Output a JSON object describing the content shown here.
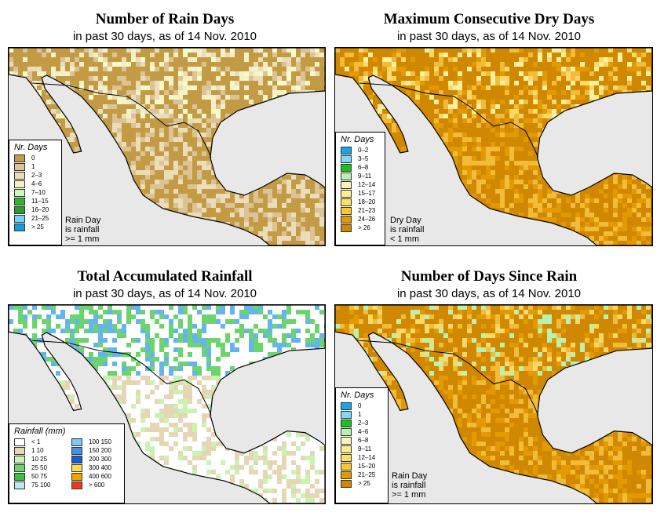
{
  "subtitle_text": "in past 30 days, as of  14 Nov. 2010",
  "colors": {
    "sea": "#e8e8e8",
    "border": "#000000"
  },
  "panels": [
    {
      "id": "rain-days",
      "title": "Number of Rain Days",
      "subtitle": "in past 30 days, as of  14 Nov. 2010",
      "map_icon": "rain-days-map",
      "palette": [
        "#c49b45",
        "#dcc395",
        "#ebdcba",
        "#f6f0c8",
        "#f7fbc9",
        "#2db52d"
      ],
      "legend": {
        "title": "Nr. Days",
        "items": [
          {
            "label": "0",
            "color": "#c49b45"
          },
          {
            "label": "1",
            "color": "#dcc395"
          },
          {
            "label": "2–3",
            "color": "#ebdcba"
          },
          {
            "label": "4–6",
            "color": "#f6f0c8"
          },
          {
            "label": "7–10",
            "color": "#cbf7c0"
          },
          {
            "label": "11–15",
            "color": "#2db52d"
          },
          {
            "label": "16–20",
            "color": "#2d9b2d"
          },
          {
            "label": "21–25",
            "color": "#6fd4f3"
          },
          {
            "label": "> 25",
            "color": "#159bdc"
          }
        ]
      },
      "note": "Rain Day\nis rainfall\n>= 1 mm"
    },
    {
      "id": "dry-days",
      "title": "Maximum Consecutive Dry Days",
      "subtitle": "in past 30 days, as of  14 Nov. 2010",
      "map_icon": "dry-days-map",
      "palette": [
        "#cf8800",
        "#e39a00",
        "#f2bc3a",
        "#fad86a",
        "#fbf0a0",
        "#b9f2b0",
        "#18c41c"
      ],
      "legend": {
        "title": "Nr. Days",
        "items": [
          {
            "label": "0–2",
            "color": "#1aa5e6"
          },
          {
            "label": "3–5",
            "color": "#7fd8f6"
          },
          {
            "label": "6–8",
            "color": "#18c41c"
          },
          {
            "label": "9–11",
            "color": "#b9f2b0"
          },
          {
            "label": "12–14",
            "color": "#fbf6b6"
          },
          {
            "label": "15–17",
            "color": "#fdf08a"
          },
          {
            "label": "18–20",
            "color": "#fbe25a"
          },
          {
            "label": "21–23",
            "color": "#f7c82c"
          },
          {
            "label": "24–26",
            "color": "#e39a00"
          },
          {
            "label": "> 26",
            "color": "#cf8800"
          }
        ]
      },
      "note": "Dry Day\nis rainfall\n< 1 mm"
    },
    {
      "id": "total-rainfall",
      "title": "Total Accumulated Rainfall",
      "subtitle": "in past 30 days, as of  14 Nov. 2010",
      "map_icon": "total-rainfall-map",
      "palette": [
        "#ffffff",
        "#ffffff",
        "#e6d6b5",
        "#c8f3b3",
        "#6cd46c",
        "#3cbf3c",
        "#64b4f0",
        "#3a7fe0"
      ],
      "legend": {
        "title": "Rainfall (mm)",
        "items": [
          {
            "label": "< 1",
            "color": "#ffffff"
          },
          {
            "label": "1   10",
            "color": "#e6d6b5"
          },
          {
            "label": "10   25",
            "color": "#c8f3b3"
          },
          {
            "label": "25   50",
            "color": "#6cd46c"
          },
          {
            "label": "50   75",
            "color": "#3cbf3c"
          },
          {
            "label": "75  100",
            "color": "#b9ecf9"
          },
          {
            "label": "100  150",
            "color": "#7fc8f3"
          },
          {
            "label": "150  200",
            "color": "#4a90e2"
          },
          {
            "label": "200  300",
            "color": "#1c5ccf"
          },
          {
            "label": "300  400",
            "color": "#fadc50"
          },
          {
            "label": "400  600",
            "color": "#f5a300"
          },
          {
            "label": "> 600",
            "color": "#ef3a1a"
          }
        ]
      },
      "note": ""
    },
    {
      "id": "days-since-rain",
      "title": "Number of Days Since Rain",
      "subtitle": "in past 30 days, as of  14 Nov. 2010",
      "map_icon": "days-since-rain-map",
      "palette": [
        "#cf8800",
        "#e39a00",
        "#f2bc3a",
        "#fad86a",
        "#b9f2b0",
        "#7fd8f6",
        "#18c41c"
      ],
      "legend": {
        "title": "Nr. Days",
        "items": [
          {
            "label": "0",
            "color": "#1aa5e6"
          },
          {
            "label": "1",
            "color": "#7fd8f6"
          },
          {
            "label": "2–3",
            "color": "#18c41c"
          },
          {
            "label": "4–6",
            "color": "#b9f2b0"
          },
          {
            "label": "6–8",
            "color": "#fbf6b6"
          },
          {
            "label": "9–11",
            "color": "#fdf08a"
          },
          {
            "label": "12–14",
            "color": "#fbe25a"
          },
          {
            "label": "15–20",
            "color": "#f7c82c"
          },
          {
            "label": "21–25",
            "color": "#e39a00"
          },
          {
            "label": "> 25",
            "color": "#cf8800"
          }
        ]
      },
      "note": "Rain Day\nis rainfall\n>= 1 mm"
    }
  ]
}
